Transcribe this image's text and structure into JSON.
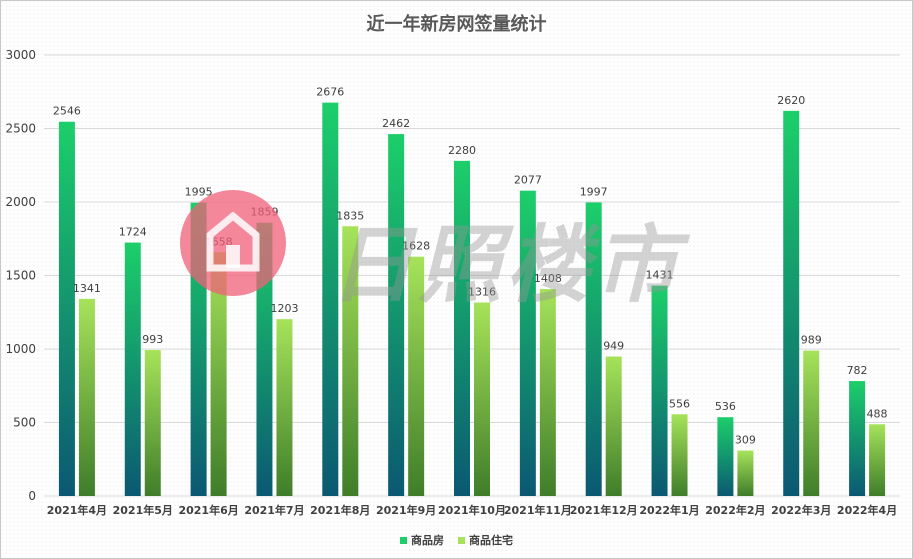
{
  "chart_data": {
    "type": "bar",
    "title": "近一年新房网签量统计",
    "categories": [
      "2021年4月",
      "2021年5月",
      "2021年6月",
      "2021年7月",
      "2021年8月",
      "2021年9月",
      "2021年10月",
      "2021年11月",
      "2021年12月",
      "2022年1月",
      "2022年2月",
      "2022年3月",
      "2022年4月"
    ],
    "series": [
      {
        "name": "商品房",
        "values": [
          2546,
          1724,
          1995,
          1859,
          2676,
          2462,
          2280,
          2077,
          1997,
          1431,
          536,
          2620,
          782
        ],
        "color_top": "#1ccf6a",
        "color_bottom": "#0b5872"
      },
      {
        "name": "商品住宅",
        "values": [
          1341,
          993,
          1658,
          1203,
          1835,
          1628,
          1316,
          1408,
          949,
          556,
          309,
          989,
          488
        ],
        "color_top": "#a6e35a",
        "color_bottom": "#3f7d2a"
      }
    ],
    "yticks": [
      0,
      500,
      1000,
      1500,
      2000,
      2500,
      3000
    ],
    "ylim": [
      0,
      3000
    ],
    "grid": true,
    "legend_position": "bottom"
  },
  "watermark": {
    "text": "日照楼市"
  }
}
